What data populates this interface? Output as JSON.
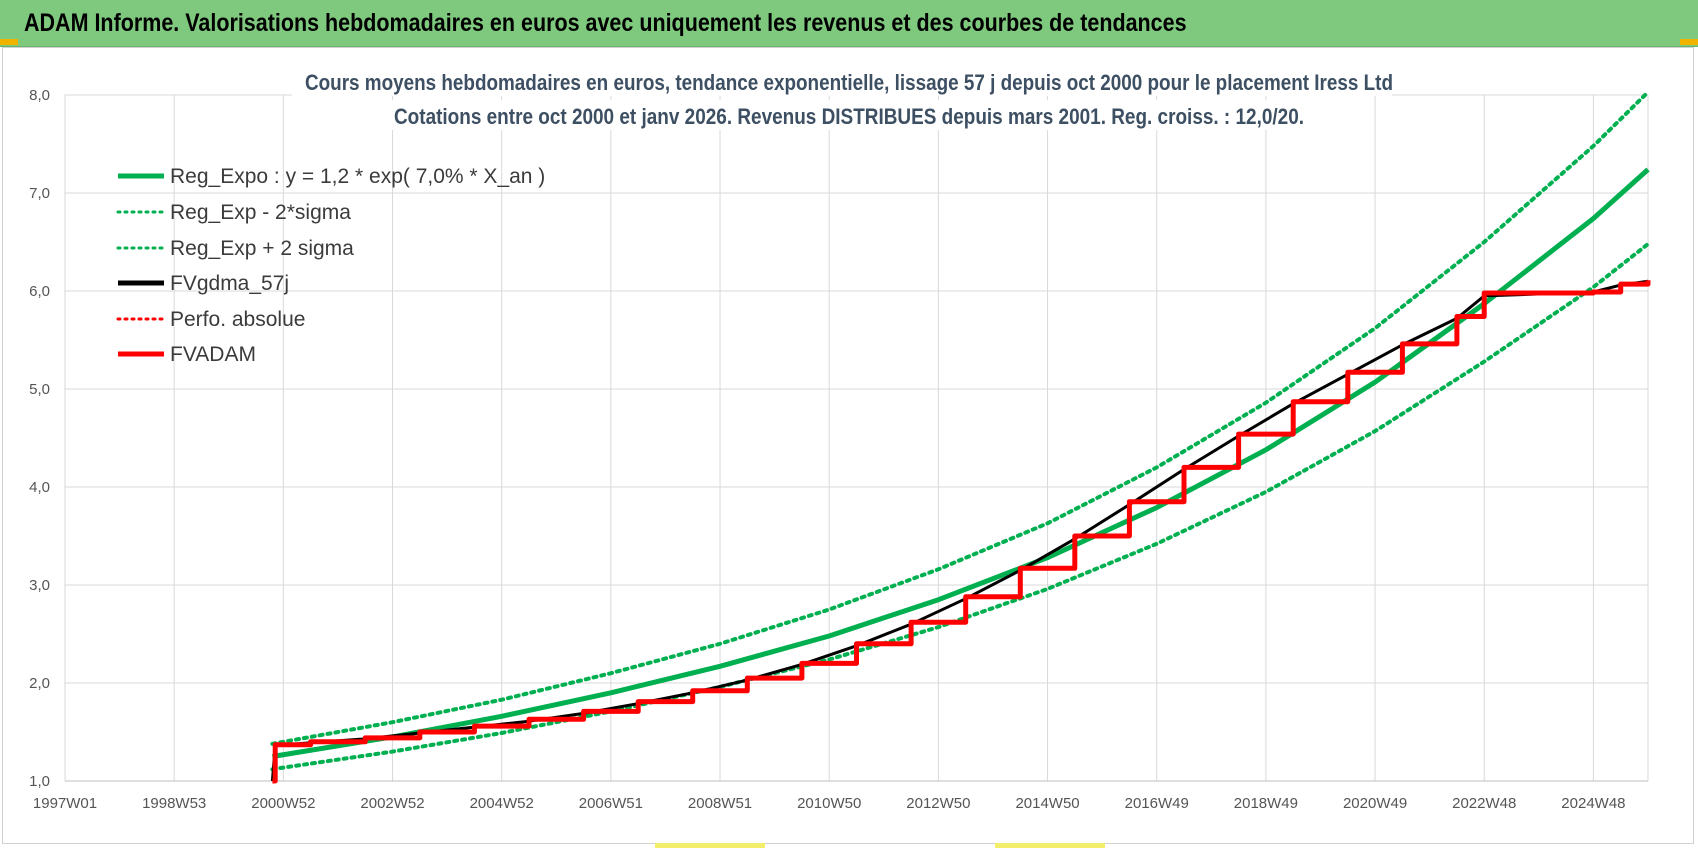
{
  "header": {
    "title": "ADAM Informe. Valorisations hebdomadaires en euros avec uniquement les revenus et des courbes de tendances"
  },
  "colors": {
    "header_bg": "#7fc97f",
    "green": "#00b050",
    "black": "#000000",
    "red": "#ff0000",
    "grid": "#d9d9d9"
  },
  "chart_data": {
    "type": "line",
    "title": "Cours moyens hebdomadaires en euros, tendance exponentielle, lissage 57 j depuis oct 2000 pour le placement Iress Ltd",
    "subtitle": "Cotations entre oct 2000 et janv 2026. Revenus DISTRIBUES depuis mars 2001. Reg. croiss. : 12,0/20.",
    "xlabel": "",
    "ylabel": "",
    "ylim": [
      1.0,
      8.0
    ],
    "xlim": [
      1997.0,
      2026.0
    ],
    "y_ticks": [
      "1,0",
      "2,0",
      "3,0",
      "4,0",
      "5,0",
      "6,0",
      "7,0",
      "8,0"
    ],
    "x_ticks": [
      {
        "x": 1997.0,
        "label": "1997W01"
      },
      {
        "x": 1999.0,
        "label": "1998W53"
      },
      {
        "x": 2001.0,
        "label": "2000W52"
      },
      {
        "x": 2003.0,
        "label": "2002W52"
      },
      {
        "x": 2005.0,
        "label": "2004W52"
      },
      {
        "x": 2007.0,
        "label": "2006W51"
      },
      {
        "x": 2009.0,
        "label": "2008W51"
      },
      {
        "x": 2011.0,
        "label": "2010W50"
      },
      {
        "x": 2013.0,
        "label": "2012W50"
      },
      {
        "x": 2015.0,
        "label": "2014W50"
      },
      {
        "x": 2017.0,
        "label": "2016W49"
      },
      {
        "x": 2019.0,
        "label": "2018W49"
      },
      {
        "x": 2021.0,
        "label": "2020W49"
      },
      {
        "x": 2023.0,
        "label": "2022W48"
      },
      {
        "x": 2025.0,
        "label": "2024W48"
      }
    ],
    "grid": true,
    "legend_position": "top-left",
    "series": [
      {
        "name": "Reg_Expo : y = 1,2 * exp( 7,0% *  X_an )",
        "color": "#00b050",
        "style": "solid",
        "x": [
          2000.8,
          2003.0,
          2005.0,
          2007.0,
          2009.0,
          2011.0,
          2013.0,
          2015.0,
          2017.0,
          2019.0,
          2021.0,
          2023.0,
          2025.0,
          2026.0
        ],
        "y": [
          1.25,
          1.45,
          1.66,
          1.9,
          2.17,
          2.48,
          2.85,
          3.28,
          3.79,
          4.38,
          5.07,
          5.87,
          6.74,
          7.24
        ]
      },
      {
        "name": "Reg_Exp - 2*sigma",
        "color": "#00b050",
        "style": "dotted",
        "x": [
          2000.8,
          2003.0,
          2005.0,
          2007.0,
          2009.0,
          2011.0,
          2013.0,
          2015.0,
          2017.0,
          2019.0,
          2021.0,
          2023.0,
          2025.0,
          2026.0
        ],
        "y": [
          1.12,
          1.3,
          1.49,
          1.71,
          1.96,
          2.24,
          2.57,
          2.96,
          3.42,
          3.95,
          4.57,
          5.28,
          6.04,
          6.48
        ]
      },
      {
        "name": "Reg_Exp + 2 sigma",
        "color": "#00b050",
        "style": "dotted",
        "x": [
          2000.8,
          2003.0,
          2005.0,
          2007.0,
          2009.0,
          2011.0,
          2013.0,
          2015.0,
          2017.0,
          2019.0,
          2021.0,
          2023.0,
          2025.0,
          2026.0
        ],
        "y": [
          1.38,
          1.6,
          1.83,
          2.1,
          2.4,
          2.75,
          3.16,
          3.63,
          4.2,
          4.86,
          5.62,
          6.5,
          7.48,
          8.03
        ]
      },
      {
        "name": "FVgdma_57j",
        "color": "#000000",
        "style": "solid",
        "x": [
          2000.8,
          2000.85,
          2001.5,
          2002.5,
          2003.5,
          2004.5,
          2005.5,
          2006.5,
          2007.5,
          2008.5,
          2009.5,
          2010.5,
          2011.5,
          2012.5,
          2013.5,
          2014.5,
          2015.5,
          2016.5,
          2017.5,
          2018.5,
          2019.5,
          2020.5,
          2021.5,
          2022.5,
          2023.0,
          2025.0,
          2025.5,
          2026.0
        ],
        "y": [
          1.0,
          1.36,
          1.39,
          1.43,
          1.49,
          1.55,
          1.61,
          1.69,
          1.79,
          1.9,
          2.03,
          2.19,
          2.38,
          2.6,
          2.86,
          3.15,
          3.47,
          3.82,
          4.18,
          4.52,
          4.85,
          5.15,
          5.45,
          5.72,
          5.95,
          5.99,
          6.06,
          6.1
        ]
      },
      {
        "name": "Perfo. absolue",
        "color": "#ff0000",
        "style": "dotted",
        "x": [],
        "y": []
      },
      {
        "name": "FVADAM",
        "color": "#ff0000",
        "style": "solid-step",
        "x": [
          2000.8,
          2000.85,
          2001.5,
          2002.5,
          2003.5,
          2004.5,
          2005.5,
          2006.5,
          2007.5,
          2008.5,
          2009.5,
          2010.5,
          2011.5,
          2012.5,
          2013.5,
          2014.5,
          2015.5,
          2016.5,
          2017.5,
          2018.5,
          2019.5,
          2020.5,
          2021.5,
          2022.5,
          2023.0,
          2025.0,
          2025.5,
          2026.0
        ],
        "y": [
          1.0,
          1.37,
          1.4,
          1.44,
          1.5,
          1.56,
          1.63,
          1.71,
          1.81,
          1.92,
          2.05,
          2.2,
          2.4,
          2.62,
          2.88,
          3.17,
          3.5,
          3.85,
          4.2,
          4.54,
          4.87,
          5.17,
          5.46,
          5.74,
          5.98,
          5.99,
          6.07,
          6.11
        ]
      }
    ]
  }
}
